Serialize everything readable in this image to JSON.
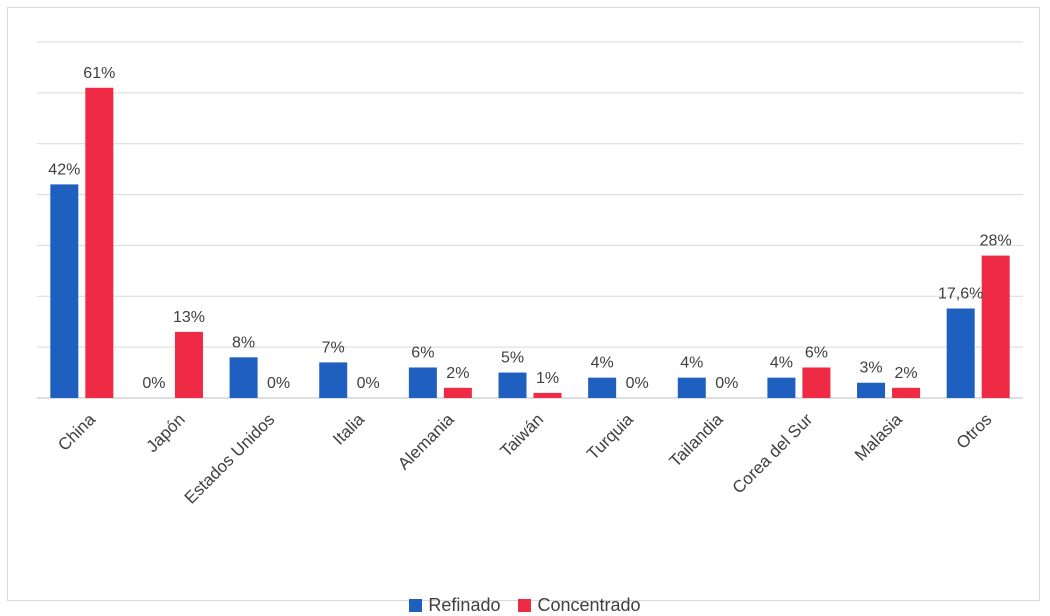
{
  "chart_data": {
    "type": "bar",
    "categories": [
      "China",
      "Japón",
      "Estados Unidos",
      "Italia",
      "Alemania",
      "Taiwán",
      "Turquia",
      "Tailandia",
      "Corea del Sur",
      "Malasia",
      "Otros"
    ],
    "series": [
      {
        "name": "Refinado",
        "color": "#1f5fbf",
        "values": [
          42,
          0,
          8,
          7,
          6,
          5,
          4,
          4,
          4,
          3,
          17.6
        ],
        "labels": [
          "42%",
          "0%",
          "8%",
          "7%",
          "6%",
          "5%",
          "4%",
          "4%",
          "4%",
          "3%",
          "17,6%"
        ]
      },
      {
        "name": "Concentrado",
        "color": "#ee2a44",
        "values": [
          61,
          13,
          0,
          0,
          2,
          1,
          0,
          0,
          6,
          2,
          28
        ],
        "labels": [
          "61%",
          "13%",
          "0%",
          "0%",
          "2%",
          "1%",
          "0%",
          "0%",
          "6%",
          "2%",
          "28%"
        ]
      }
    ],
    "ylim": [
      0,
      70
    ],
    "grid": true,
    "legend": "bottom"
  }
}
